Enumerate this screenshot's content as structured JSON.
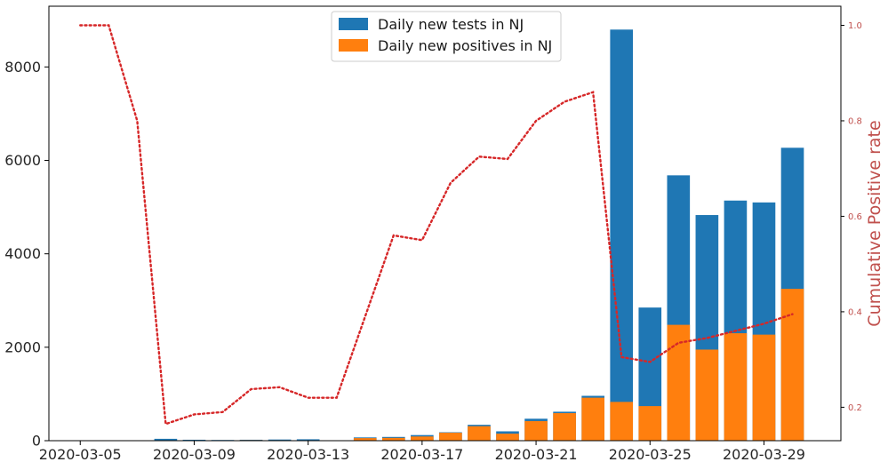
{
  "chart_data": {
    "type": "bar",
    "dates": [
      "2020-03-05",
      "2020-03-06",
      "2020-03-07",
      "2020-03-08",
      "2020-03-09",
      "2020-03-10",
      "2020-03-11",
      "2020-03-12",
      "2020-03-13",
      "2020-03-14",
      "2020-03-15",
      "2020-03-16",
      "2020-03-17",
      "2020-03-18",
      "2020-03-19",
      "2020-03-20",
      "2020-03-21",
      "2020-03-22",
      "2020-03-23",
      "2020-03-24",
      "2020-03-25",
      "2020-03-26",
      "2020-03-27",
      "2020-03-28",
      "2020-03-29",
      "2020-03-30"
    ],
    "series": [
      {
        "name": "Daily new tests in NJ",
        "color": "#1f77b4",
        "values": [
          0,
          0,
          0,
          40,
          20,
          15,
          20,
          25,
          30,
          0,
          70,
          80,
          120,
          180,
          340,
          200,
          470,
          620,
          960,
          8800,
          2850,
          5680,
          4830,
          5140,
          5100,
          6270
        ]
      },
      {
        "name": "Daily new positives in NJ",
        "color": "#ff7f0e",
        "values": [
          0,
          0,
          0,
          8,
          5,
          6,
          12,
          10,
          8,
          0,
          55,
          60,
          90,
          170,
          310,
          150,
          420,
          590,
          920,
          830,
          740,
          2480,
          1950,
          2300,
          2270,
          3250
        ]
      },
      {
        "name": "Cumulative Positive rate",
        "axis": "right",
        "color": "#d62728",
        "style": "dotted",
        "values": [
          1.0,
          1.0,
          0.8,
          0.165,
          0.185,
          0.19,
          0.238,
          0.242,
          0.22,
          0.22,
          0.39,
          0.56,
          0.55,
          0.67,
          0.725,
          0.72,
          0.8,
          0.84,
          0.86,
          0.305,
          0.295,
          0.335,
          0.345,
          0.36,
          0.375,
          0.395
        ]
      }
    ],
    "xtick_labels": [
      "2020-03-05",
      "2020-03-09",
      "2020-03-13",
      "2020-03-17",
      "2020-03-21",
      "2020-03-25",
      "2020-03-29"
    ],
    "ylim": [
      0,
      9300
    ],
    "yticks": [
      "0",
      "2000",
      "4000",
      "6000",
      "8000"
    ],
    "y2lim": [
      0.13,
      1.04
    ],
    "y2ticks": [
      "0.2",
      "0.4",
      "0.6",
      "0.8",
      "1.0"
    ],
    "y2label": "Cumulative Positive rate",
    "legend_position": "upper-center",
    "grid": false
  }
}
